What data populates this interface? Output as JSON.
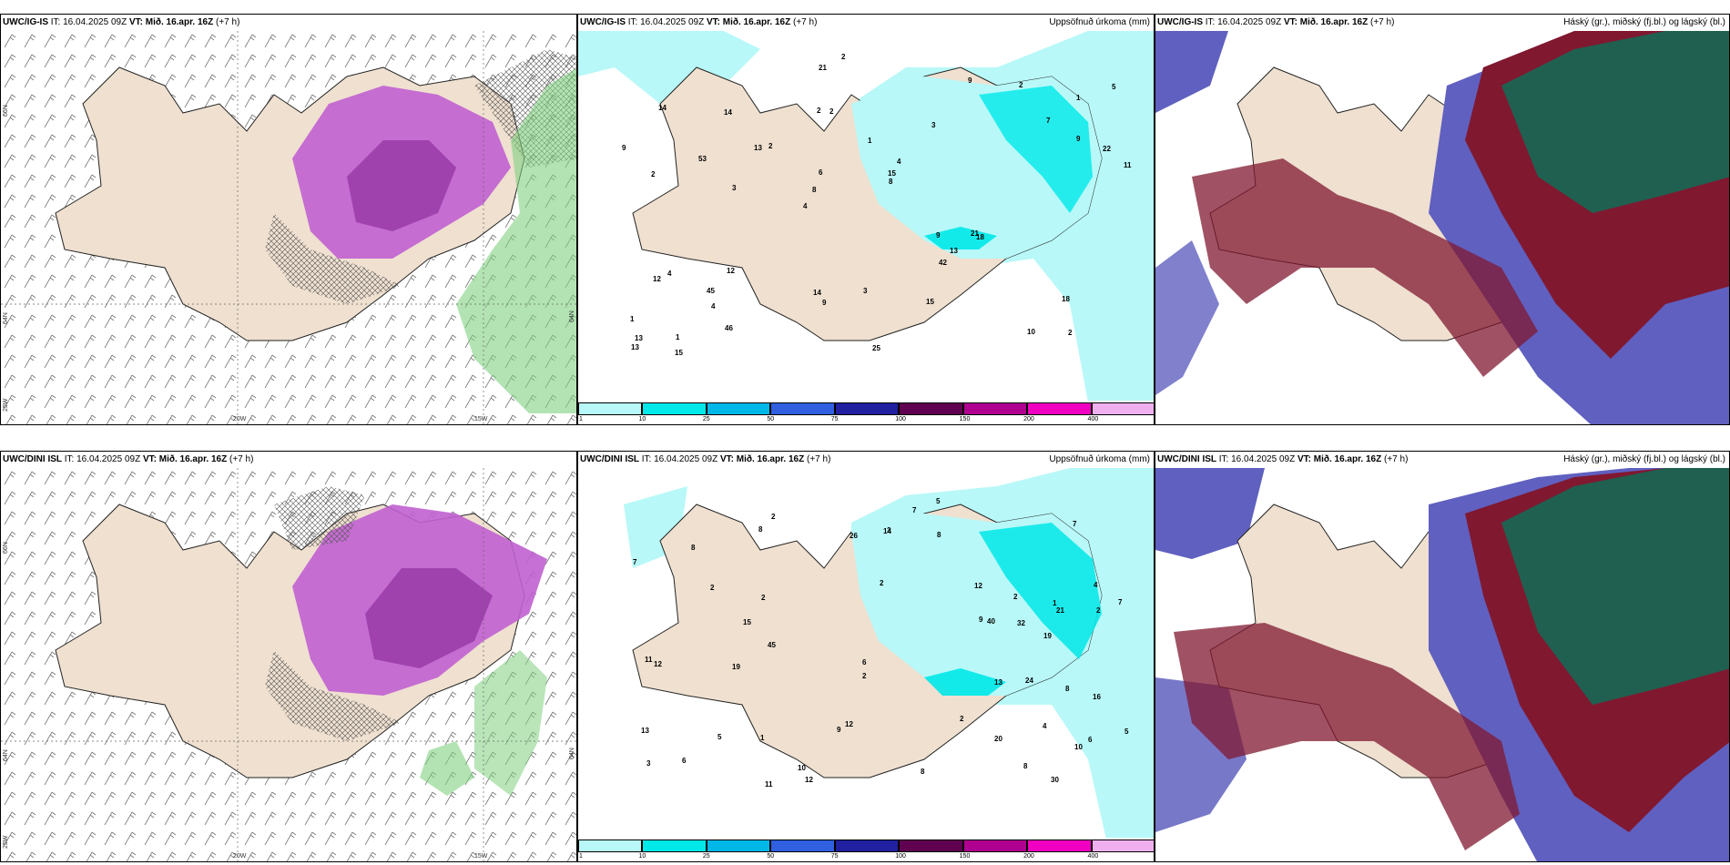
{
  "rows": [
    {
      "model": "UWC/IG-IS",
      "it": "IT: 16.04.2025 09Z",
      "vt_label": "VT:",
      "vt": "Mið. 16.apr. 16Z",
      "lead": "(+7 h)",
      "lat_left": "66N",
      "lat_mid": "64N",
      "lon_w": "25W",
      "lon_20": "20W",
      "lon_15": "15W",
      "lat_right": "64N",
      "precip_title": "Uppsöfnuð úrkoma (mm)",
      "cloud_title": "Háský (gr.), miðský (fj.bl.) og lágský (bl.)"
    },
    {
      "model": "UWC/DINI ISL",
      "it": "IT: 16.04.2025 09Z",
      "vt_label": "VT:",
      "vt": "Mið. 16.apr. 16Z",
      "lead": "(+7 h)",
      "lat_left": "66N",
      "lat_mid": "64N",
      "lon_w": "25W",
      "lon_20": "20W",
      "lon_15": "15W",
      "lat_right": "64N",
      "precip_title": "Uppsöfnuð úrkoma (mm)",
      "cloud_title": "Háský (gr.), miðský (fj.bl.) og lágský (bl.)"
    }
  ],
  "colorbar": {
    "ticks": [
      "1",
      "10",
      "25",
      "50",
      "75",
      "100",
      "150",
      "200",
      "400"
    ],
    "colors": [
      "#b8f8f8",
      "#00e8e8",
      "#00b8e8",
      "#3060e0",
      "#2020a0",
      "#600050",
      "#b00090",
      "#f000c0",
      "#f0b0f0"
    ]
  },
  "colors": {
    "land": "#efe0d0",
    "precip_light": "#b8f8f8",
    "precip_mid": "#00e8e8",
    "snow_purple": "#c060d0",
    "high_cloud": "#206050",
    "mid_cloud": "#801830",
    "low_cloud": "#6060c0"
  },
  "precip_numbers_top": [
    "2",
    "2",
    "1",
    "4",
    "3",
    "1",
    "2",
    "1",
    "4",
    "2",
    "1",
    "4",
    "2",
    "4",
    "18",
    "14",
    "21",
    "11",
    "9",
    "9",
    "8",
    "14",
    "6",
    "14",
    "9",
    "12",
    "10",
    "18",
    "21",
    "25",
    "13",
    "53",
    "42",
    "46",
    "22",
    "15",
    "13",
    "9",
    "8",
    "12",
    "7",
    "5",
    "13",
    "15",
    "45",
    "15",
    "13",
    "3",
    "2",
    "2",
    "3",
    "9"
  ],
  "precip_numbers_bottom": [
    "4",
    "4",
    "6",
    "2",
    "3",
    "2",
    "1",
    "1",
    "7",
    "2",
    "2",
    "7",
    "19",
    "12",
    "13",
    "8",
    "10",
    "8",
    "12",
    "21",
    "11",
    "12",
    "8",
    "9",
    "10",
    "9",
    "7",
    "8",
    "12",
    "5",
    "19",
    "20",
    "11",
    "6",
    "8",
    "8",
    "40",
    "26",
    "30",
    "45",
    "24",
    "32",
    "14",
    "15",
    "16",
    "13",
    "6",
    "5",
    "2",
    "2",
    "5",
    "2",
    "2",
    "7",
    "2"
  ],
  "cloud_footer": ""
}
